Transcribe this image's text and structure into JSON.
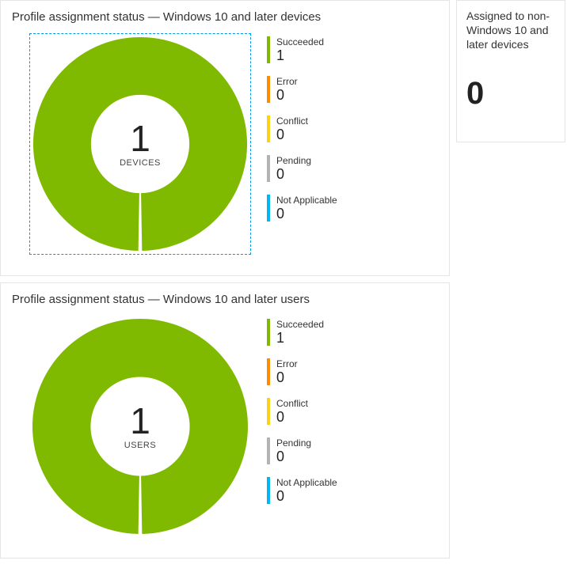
{
  "devices_card": {
    "title": "Profile assignment status — Windows 10 and later devices",
    "donut": {
      "value": "1",
      "label": "DEVICES",
      "fill_color": "#7fba00",
      "inner_ratio": 0.46,
      "gap_angle_deg": 2
    },
    "selected": true,
    "legend": [
      {
        "label": "Succeeded",
        "value": "1",
        "color": "#7fba00"
      },
      {
        "label": "Error",
        "value": "0",
        "color": "#ff8c00"
      },
      {
        "label": "Conflict",
        "value": "0",
        "color": "#fcd116"
      },
      {
        "label": "Pending",
        "value": "0",
        "color": "#b3b3b3"
      },
      {
        "label": "Not Applicable",
        "value": "0",
        "color": "#00b7f1"
      }
    ]
  },
  "users_card": {
    "title": "Profile assignment status — Windows 10 and later users",
    "donut": {
      "value": "1",
      "label": "USERS",
      "fill_color": "#7fba00",
      "inner_ratio": 0.46,
      "gap_angle_deg": 2
    },
    "selected": false,
    "legend": [
      {
        "label": "Succeeded",
        "value": "1",
        "color": "#7fba00"
      },
      {
        "label": "Error",
        "value": "0",
        "color": "#ff8c00"
      },
      {
        "label": "Conflict",
        "value": "0",
        "color": "#fcd116"
      },
      {
        "label": "Pending",
        "value": "0",
        "color": "#b3b3b3"
      },
      {
        "label": "Not Applicable",
        "value": "0",
        "color": "#00b7f1"
      }
    ]
  },
  "side_card": {
    "title": "Assigned to non-Windows 10 and later devices",
    "value": "0"
  }
}
